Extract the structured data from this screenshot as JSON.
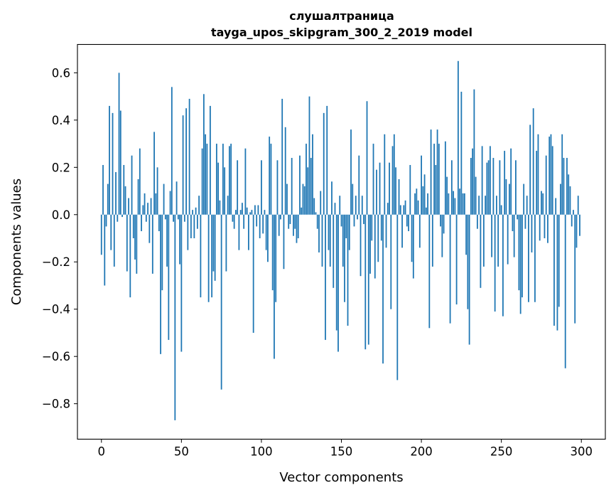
{
  "chart_data": {
    "type": "bar",
    "title": "слушалтраница",
    "subtitle": "tayga_upos_skipgram_300_2_2019 model",
    "xlabel": "Vector components",
    "ylabel": "Components values",
    "xlim": [
      -15,
      315
    ],
    "ylim": [
      -0.95,
      0.72
    ],
    "xticks": [
      0,
      50,
      100,
      150,
      200,
      250,
      300
    ],
    "xtick_labels": [
      "0",
      "50",
      "100",
      "150",
      "200",
      "250",
      "300"
    ],
    "yticks": [
      -0.8,
      -0.6,
      -0.4,
      -0.2,
      0.0,
      0.2,
      0.4,
      0.6
    ],
    "ytick_labels": [
      "−0.8",
      "−0.6",
      "−0.4",
      "−0.2",
      "0.0",
      "0.2",
      "0.4",
      "0.6"
    ],
    "grid": false,
    "color": "#1f77b4",
    "values": [
      -0.17,
      0.21,
      -0.3,
      -0.05,
      0.13,
      0.46,
      -0.15,
      0.43,
      -0.22,
      0.18,
      -0.03,
      0.6,
      0.44,
      -0.01,
      0.21,
      0.12,
      -0.24,
      0.07,
      -0.35,
      0.25,
      -0.1,
      -0.19,
      -0.25,
      0.15,
      0.28,
      -0.07,
      0.04,
      0.09,
      -0.03,
      0.05,
      -0.12,
      0.07,
      -0.25,
      0.35,
      0.09,
      0.2,
      -0.07,
      -0.59,
      -0.32,
      0.13,
      -0.02,
      -0.22,
      -0.53,
      0.1,
      0.54,
      -0.03,
      -0.87,
      0.14,
      -0.02,
      -0.21,
      -0.58,
      0.42,
      -0.03,
      0.45,
      -0.15,
      0.49,
      -0.1,
      0.02,
      -0.1,
      0.03,
      -0.06,
      0.08,
      -0.35,
      0.28,
      0.51,
      0.34,
      0.3,
      -0.37,
      0.46,
      -0.35,
      -0.24,
      -0.28,
      0.3,
      0.22,
      0.06,
      -0.74,
      0.3,
      0.2,
      -0.24,
      0.08,
      0.29,
      0.3,
      -0.03,
      -0.06,
      0.02,
      0.23,
      -0.15,
      0.02,
      0.05,
      -0.06,
      0.28,
      0.03,
      -0.15,
      0.01,
      0.02,
      -0.5,
      0.04,
      -0.05,
      0.04,
      -0.1,
      0.23,
      -0.08,
      0.02,
      -0.15,
      -0.2,
      0.33,
      0.3,
      -0.32,
      -0.61,
      -0.37,
      0.23,
      -0.09,
      -0.02,
      0.49,
      -0.23,
      0.37,
      0.13,
      -0.06,
      -0.04,
      0.24,
      -0.09,
      -0.06,
      -0.12,
      -0.1,
      0.25,
      0.03,
      0.13,
      0.12,
      0.3,
      0.2,
      0.5,
      0.24,
      0.34,
      0.07,
      0.01,
      -0.06,
      -0.16,
      0.1,
      -0.22,
      0.43,
      -0.53,
      0.46,
      -0.15,
      -0.22,
      0.14,
      -0.31,
      0.05,
      -0.49,
      -0.58,
      0.08,
      -0.05,
      -0.22,
      -0.37,
      -0.1,
      -0.47,
      -0.15,
      0.36,
      0.13,
      -0.05,
      0.08,
      -0.02,
      0.25,
      -0.26,
      0.08,
      -0.04,
      -0.57,
      0.48,
      -0.55,
      -0.25,
      -0.11,
      0.3,
      -0.27,
      0.19,
      -0.2,
      0.22,
      -0.11,
      -0.63,
      0.34,
      -0.14,
      0.05,
      0.22,
      -0.4,
      0.29,
      0.34,
      0.2,
      -0.7,
      0.15,
      0.04,
      -0.14,
      0.04,
      0.06,
      -0.05,
      -0.07,
      0.21,
      -0.2,
      -0.27,
      0.09,
      0.11,
      0.06,
      -0.14,
      0.25,
      0.12,
      0.17,
      0.03,
      0.09,
      -0.48,
      0.36,
      -0.22,
      0.3,
      0.21,
      0.36,
      0.3,
      -0.05,
      -0.18,
      -0.08,
      0.31,
      0.16,
      0.09,
      -0.46,
      0.23,
      0.1,
      0.07,
      -0.38,
      0.65,
      0.11,
      0.52,
      0.09,
      0.09,
      -0.17,
      -0.4,
      -0.55,
      0.24,
      0.28,
      0.53,
      0.16,
      -0.06,
      0.08,
      -0.31,
      0.29,
      -0.22,
      0.08,
      0.22,
      0.23,
      0.29,
      -0.18,
      0.24,
      -0.41,
      0.08,
      -0.22,
      0.23,
      0.04,
      -0.43,
      0.27,
      0.15,
      -0.21,
      0.13,
      0.28,
      -0.07,
      -0.18,
      0.23,
      -0.02,
      -0.32,
      -0.42,
      -0.35,
      0.13,
      -0.06,
      0.08,
      -0.37,
      0.38,
      -0.16,
      0.45,
      -0.37,
      0.27,
      0.34,
      -0.11,
      0.1,
      0.09,
      -0.1,
      0.25,
      -0.12,
      0.33,
      0.34,
      0.29,
      -0.47,
      0.07,
      -0.49,
      -0.39,
      0.13,
      0.34,
      0.24,
      -0.65,
      0.24,
      0.17,
      0.12,
      -0.05,
      0.02,
      -0.46,
      -0.14,
      0.08,
      -0.09
    ]
  }
}
